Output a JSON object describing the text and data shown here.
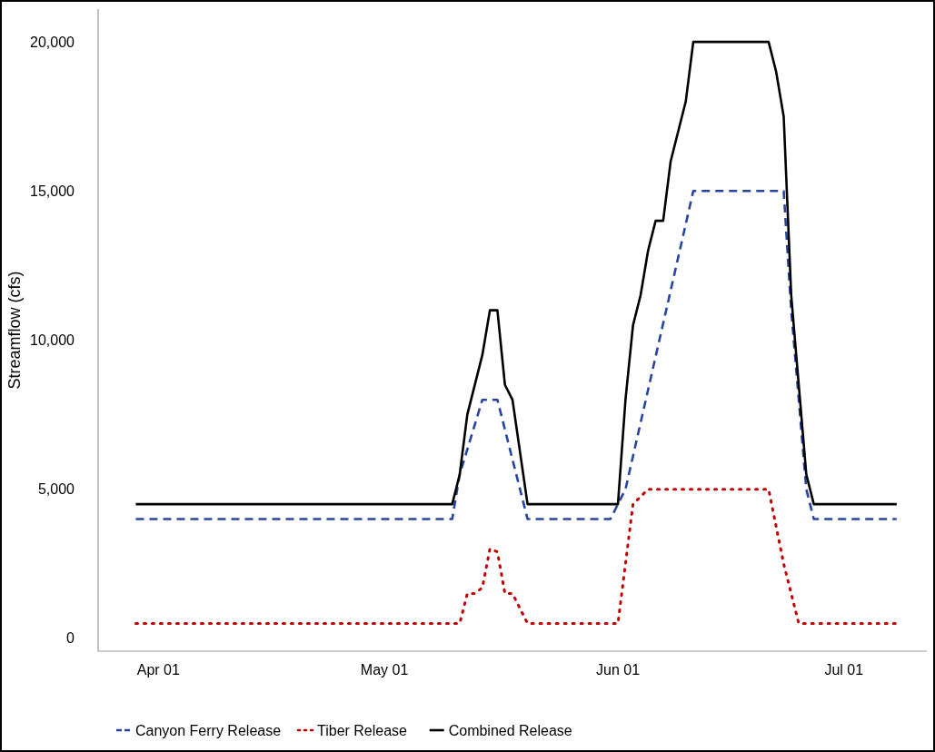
{
  "chart_data": {
    "type": "line",
    "ylabel": "Streamflow (cfs)",
    "xlim": [
      "--03-24",
      "--07-12"
    ],
    "xticks": [
      {
        "value": "--04-01",
        "label": "Apr 01"
      },
      {
        "value": "--05-01",
        "label": "May 01"
      },
      {
        "value": "--06-01",
        "label": "Jun 01"
      },
      {
        "value": "--07-01",
        "label": "Jul 01"
      }
    ],
    "ylim": [
      -430,
      21100
    ],
    "yticks": [
      0,
      {
        "value": 5000,
        "label": "5,000"
      },
      {
        "value": 10000,
        "label": "10,000"
      },
      {
        "value": 15000,
        "label": "15,000"
      },
      {
        "value": 20000,
        "label": "20,000"
      }
    ],
    "grid": false,
    "legend": "bottom",
    "series": [
      {
        "name": "Canyon Ferry Release",
        "color": "#2745a0",
        "line_style": "dashed",
        "x": [
          "--03-29",
          "--05-10",
          "--05-11",
          "--05-14",
          "--05-16",
          "--05-17",
          "--05-20",
          "--05-31",
          "--06-02",
          "--06-11",
          "--06-23",
          "--06-24",
          "--06-25",
          "--06-26",
          "--06-27",
          "--07-08"
        ],
        "values": [
          4000,
          4000,
          5500,
          8000,
          8000,
          7000,
          4000,
          4000,
          5000,
          15000,
          15000,
          11000,
          8000,
          5000,
          4000,
          4000
        ]
      },
      {
        "name": "Tiber Release",
        "color": "#c00000",
        "line_style": "dotted",
        "x": [
          "--03-29",
          "--05-11",
          "--05-12",
          "--05-13",
          "--05-14",
          "--05-15",
          "--05-16",
          "--05-17",
          "--05-18",
          "--05-20",
          "--06-01",
          "--06-03",
          "--06-05",
          "--06-21",
          "--06-23",
          "--06-25",
          "--07-08"
        ],
        "values": [
          500,
          500,
          1500,
          1500,
          1700,
          3000,
          2900,
          1500,
          1500,
          500,
          500,
          4500,
          5000,
          5000,
          2500,
          500,
          500
        ]
      },
      {
        "name": "Combined Release",
        "color": "#000000",
        "line_style": "solid",
        "x": [
          "--03-29",
          "--05-10",
          "--05-11",
          "--05-12",
          "--05-14",
          "--05-15",
          "--05-16",
          "--05-17",
          "--05-18",
          "--05-20",
          "--06-01",
          "--06-02",
          "--06-03",
          "--06-04",
          "--06-05",
          "--06-06",
          "--06-07",
          "--06-08",
          "--06-10",
          "--06-11",
          "--06-21",
          "--06-22",
          "--06-23",
          "--06-24",
          "--06-25",
          "--06-26",
          "--06-27",
          "--07-08"
        ],
        "values": [
          4500,
          4500,
          5500,
          7500,
          9500,
          11000,
          11000,
          8500,
          8000,
          4500,
          4500,
          8000,
          10500,
          11500,
          13000,
          14000,
          14000,
          16000,
          18000,
          20000,
          20000,
          19000,
          17500,
          11500,
          8500,
          5500,
          4500,
          4500
        ]
      }
    ]
  }
}
